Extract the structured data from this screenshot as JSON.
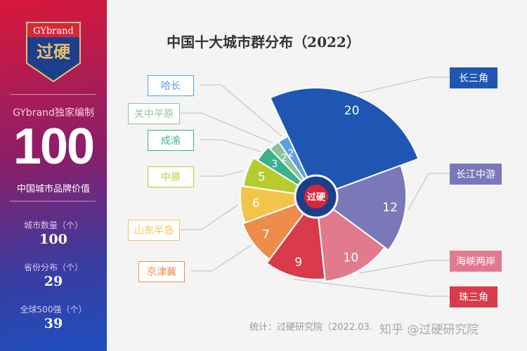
{
  "sidebar": {
    "logo_text": "GYbrand",
    "logo_main": "过硬",
    "subtitle": "GYbrand独家编制",
    "big_number": "100",
    "big_label": "中国城市品牌价值",
    "stats": [
      {
        "label": "城市数量（个）",
        "value": "100"
      },
      {
        "label": "省份分布（个）",
        "value": "29"
      },
      {
        "label": "全球500强（个）",
        "value": "39"
      }
    ]
  },
  "footer": {
    "source": "统计：过硬研究院（2022.03.",
    "watermark": "知乎 @过硬研究院"
  },
  "chart_data": {
    "type": "pie",
    "subtype": "rose",
    "title": "中国十大城市群分布（2022）",
    "center_logo": "过硬",
    "categories": [
      "长三角",
      "长江中游",
      "海峡两岸",
      "珠三角",
      "京津冀",
      "山东半岛",
      "中原",
      "成渝",
      "关中平原",
      "哈长"
    ],
    "values": [
      20,
      12,
      10,
      9,
      7,
      6,
      5,
      3,
      2,
      2
    ],
    "colors": [
      "#1f56b4",
      "#7a78b8",
      "#e27a8e",
      "#d93a4c",
      "#ee8c4a",
      "#f2c44a",
      "#b6cc2e",
      "#3bb08a",
      "#8cc49a",
      "#5aa0e0"
    ],
    "legend": "labels around chart"
  }
}
